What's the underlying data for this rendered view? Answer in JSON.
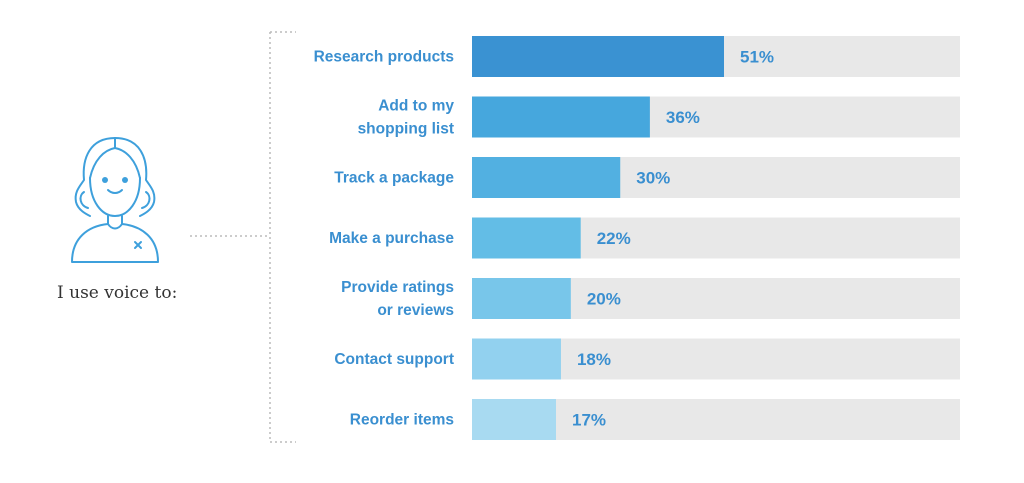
{
  "caption": "I use voice to:",
  "icons": {
    "avatar": "person-avatar-icon"
  },
  "colors": {
    "track": "#e8e8e8",
    "label": "#3a8fd0",
    "bars": [
      "#3a92d2",
      "#46a7dd",
      "#52b0e1",
      "#63bde6",
      "#78c6ea",
      "#92d1ef",
      "#a8daf1"
    ],
    "avatar_stroke": "#3ea0dc",
    "dots": "#bbbbbb"
  },
  "chart_data": {
    "type": "bar",
    "orientation": "horizontal",
    "categories": [
      [
        "Research products"
      ],
      [
        "Add to my",
        "shopping list"
      ],
      [
        "Track a package"
      ],
      [
        "Make a purchase"
      ],
      [
        "Provide ratings",
        "or reviews"
      ],
      [
        "Contact support"
      ],
      [
        "Reorder items"
      ]
    ],
    "values": [
      51,
      36,
      30,
      22,
      20,
      18,
      17
    ],
    "value_labels": [
      "51%",
      "36%",
      "30%",
      "22%",
      "20%",
      "18%",
      "17%"
    ],
    "xlim": [
      0,
      100
    ],
    "grid": false,
    "legend": "none"
  }
}
